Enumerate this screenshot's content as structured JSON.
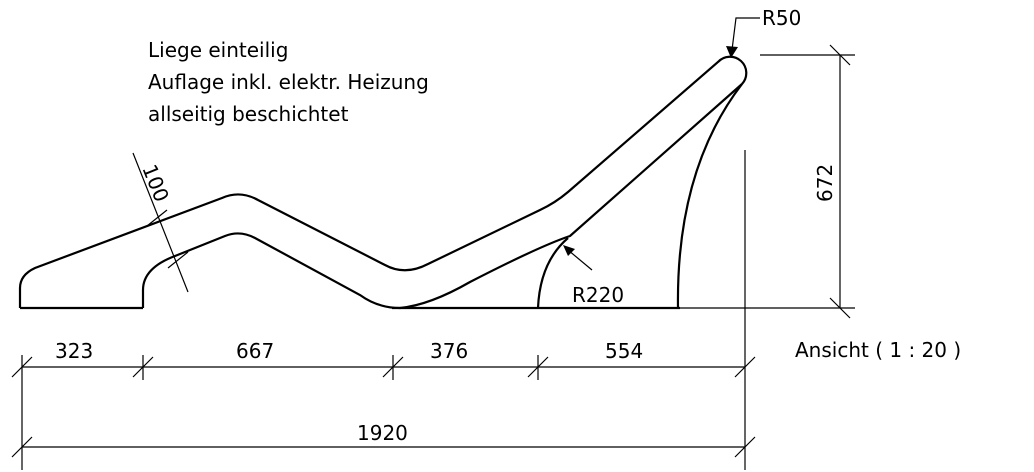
{
  "notes": [
    "Liege einteilig",
    "Auflage inkl. elektr. Heizung",
    "allseitig beschichtet"
  ],
  "radius_labels": [
    "R50",
    "R220"
  ],
  "thickness": 100,
  "height": 672,
  "segments": [
    323,
    667,
    376,
    554
  ],
  "total": 1920,
  "caption": "Ansicht ( 1 : 20 )"
}
